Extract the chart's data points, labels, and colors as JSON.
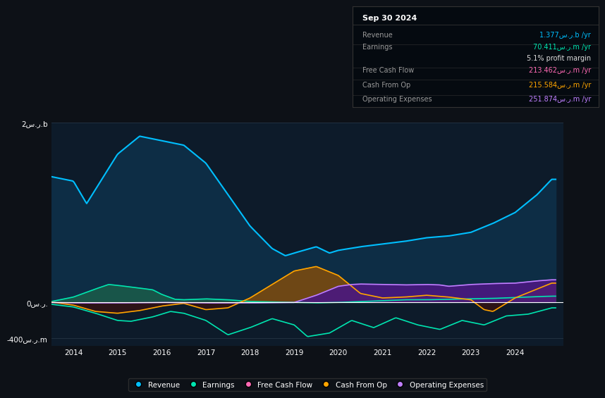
{
  "bg_color": "#0d1117",
  "plot_bg_color": "#0d1b2a",
  "grid_color": "#2a3a4a",
  "zero_line_color": "#ffffff",
  "y_label_top": "2س.ر.b",
  "y_label_bottom": "-400س.ر.m",
  "y_label_zero": "0س.ر.",
  "info_box": {
    "title": "Sep 30 2024",
    "rows": [
      {
        "label": "Revenue",
        "value": "1.377س.ر.b /yr",
        "color": "#00bfff"
      },
      {
        "label": "Earnings",
        "value": "70.411س.ر.m /yr",
        "color": "#00e5b0"
      },
      {
        "label": "",
        "value": "5.1% profit margin",
        "color": "#dddddd"
      },
      {
        "label": "Free Cash Flow",
        "value": "213.462س.ر.m /yr",
        "color": "#ff69b4"
      },
      {
        "label": "Cash From Op",
        "value": "215.584س.ر.m /yr",
        "color": "#ffa500"
      },
      {
        "label": "Operating Expenses",
        "value": "251.874س.ر.m /yr",
        "color": "#bf7fff"
      }
    ]
  },
  "legend": [
    {
      "label": "Revenue",
      "color": "#00bfff"
    },
    {
      "label": "Earnings",
      "color": "#00e5b0"
    },
    {
      "label": "Free Cash Flow",
      "color": "#ff69b4"
    },
    {
      "label": "Cash From Op",
      "color": "#ffa500"
    },
    {
      "label": "Operating Expenses",
      "color": "#bf7fff"
    }
  ],
  "revenue_color": "#00bfff",
  "revenue_fill": "#0d2d45",
  "earnings_color": "#00e5b0",
  "earnings_fill_pos": "#1a5a4a",
  "earnings_fill_neg": "#3a1010",
  "cashflow_color": "#00e5b0",
  "cashop_color": "#ffa500",
  "cashop_fill_pos": "#7a4a10",
  "cashop_fill_neg": "#3a1010",
  "opex_color": "#bf7fff",
  "opex_fill": "#4a1880",
  "fcf_color": "#ffa500",
  "fcf_fill_neg": "#3a1010"
}
